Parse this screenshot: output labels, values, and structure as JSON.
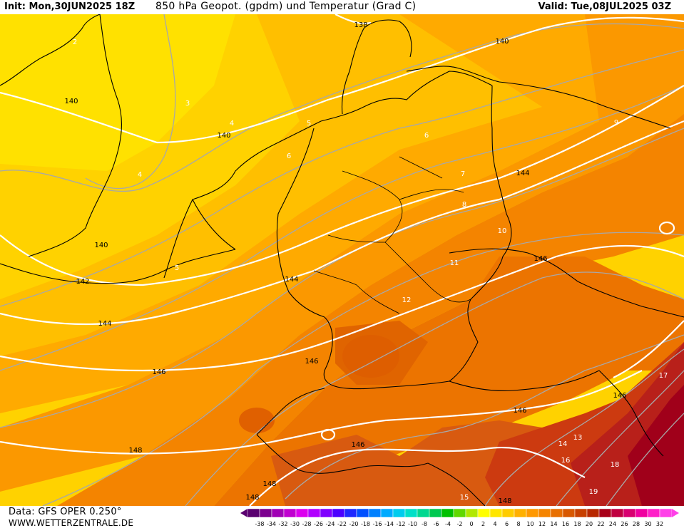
{
  "header": {
    "init": "Init: Mon,30JUN2025 18Z",
    "title": "850 hPa Geopot. (gpdm) und Temperatur (Grad C)",
    "valid": "Valid: Tue,08JUL2025 03Z"
  },
  "footer": {
    "data_source": "Data: GFS OPER 0.250°",
    "website": "WWW.WETTERZENTRALE.DE"
  },
  "legend": {
    "ticks": [
      "-38",
      "-34",
      "-32",
      "-30",
      "-28",
      "-26",
      "-24",
      "-22",
      "-20",
      "-18",
      "-16",
      "-14",
      "-12",
      "-10",
      "-8",
      "-6",
      "-4",
      "-2",
      "0",
      "2",
      "4",
      "6",
      "8",
      "10",
      "12",
      "14",
      "16",
      "18",
      "20",
      "22",
      "24",
      "26",
      "28",
      "30",
      "32"
    ],
    "colors": [
      "#5a0070",
      "#7c008f",
      "#a000b5",
      "#c000d0",
      "#dc00ef",
      "#b100ff",
      "#7f00ff",
      "#4b00ff",
      "#1e28ff",
      "#0050ff",
      "#0080ff",
      "#00aaff",
      "#00ccee",
      "#00e0c8",
      "#00d890",
      "#00c850",
      "#00c000",
      "#60d800",
      "#b0e800",
      "#ffff00",
      "#ffe600",
      "#ffcc00",
      "#ffb000",
      "#ff9800",
      "#f58400",
      "#e86f00",
      "#d85800",
      "#c84000",
      "#b82800",
      "#a80018",
      "#c00040",
      "#d80070",
      "#f000a0",
      "#ff20c8",
      "#ff40e8"
    ]
  },
  "temperature_bands": [
    2,
    3,
    4,
    5,
    6,
    7,
    8,
    9,
    10,
    11,
    12,
    13,
    14,
    15,
    16,
    17,
    18,
    19
  ],
  "geopotential_labels": [
    "138",
    "140",
    "140",
    "140",
    "140",
    "142",
    "144",
    "144",
    "144",
    "146",
    "146",
    "146",
    "146",
    "146",
    "146",
    "148",
    "148",
    "148",
    "148"
  ],
  "temperature_labels": [
    "2",
    "3",
    "4",
    "4",
    "5",
    "5",
    "6",
    "6",
    "7",
    "8",
    "9",
    "10",
    "11",
    "12",
    "13",
    "14",
    "15",
    "16",
    "17",
    "18",
    "19"
  ]
}
